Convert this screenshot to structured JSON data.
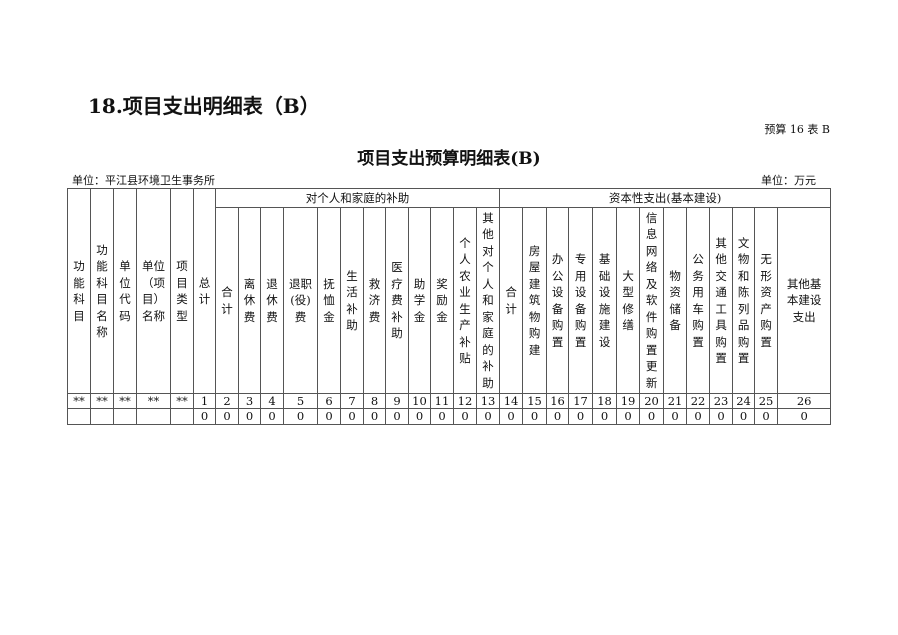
{
  "section_title": "18.项目支出明细表（B）",
  "table_number": "预算 16 表 B",
  "title": "项目支出预算明细表(B)",
  "unit_left": "单位：平江县环境卫生事务所",
  "unit_right": "单位：万元",
  "headers": {
    "fixed": [
      "功\n能\n科\n目",
      "功\n能\n科\n目\n名\n称",
      "单\n位\n代\n码",
      "单位\n（项\n目）\n名称",
      "项\n目\n类\n型",
      "总\n计"
    ],
    "group1": "对个人和家庭的补助",
    "group1_cols": [
      "合\n计",
      "离\n休\n费",
      "退\n休\n费",
      "退职\n(役)\n费",
      "抚\n恤\n金",
      "生\n活\n补\n助",
      "救\n济\n费",
      "医\n疗\n费\n补\n助",
      "助\n学\n金",
      "奖\n励\n金",
      "个\n人\n农\n业\n生\n产\n补\n贴",
      "其\n他\n对\n个\n人\n和\n家\n庭\n的\n补\n助"
    ],
    "group2": "资本性支出(基本建设)",
    "group2_cols": [
      "合\n计",
      "房\n屋\n建\n筑\n物\n购\n建",
      "办\n公\n设\n备\n购\n置",
      "专\n用\n设\n备\n购\n置",
      "基\n础\n设\n施\n建\n设",
      "大\n型\n修\n缮",
      "信\n息\n网\n络\n及\n软\n件\n购\n置\n更\n新",
      "物\n资\n储\n备",
      "公\n务\n用\n车\n购\n置",
      "其\n他\n交\n通\n工\n具\n购\n置",
      "文\n物\n和\n陈\n列\n品\n购\n置",
      "无\n形\n资\n产\n购\n置",
      "其他基\n本建设\n支出"
    ]
  },
  "number_row": [
    "**",
    "**",
    "**",
    "**",
    "**",
    "1",
    "2",
    "3",
    "4",
    "5",
    "6",
    "7",
    "8",
    "9",
    "10",
    "11",
    "12",
    "13",
    "14",
    "15",
    "16",
    "17",
    "18",
    "19",
    "20",
    "21",
    "22",
    "23",
    "24",
    "25",
    "26"
  ],
  "data_rows": [
    [
      "",
      "",
      "",
      "",
      "",
      "0",
      "0",
      "0",
      "0",
      "0",
      "0",
      "0",
      "0",
      "0",
      "0",
      "0",
      "0",
      "0",
      "0",
      "0",
      "0",
      "0",
      "0",
      "0",
      "0",
      "0",
      "0",
      "0",
      "0",
      "0",
      "0"
    ]
  ]
}
